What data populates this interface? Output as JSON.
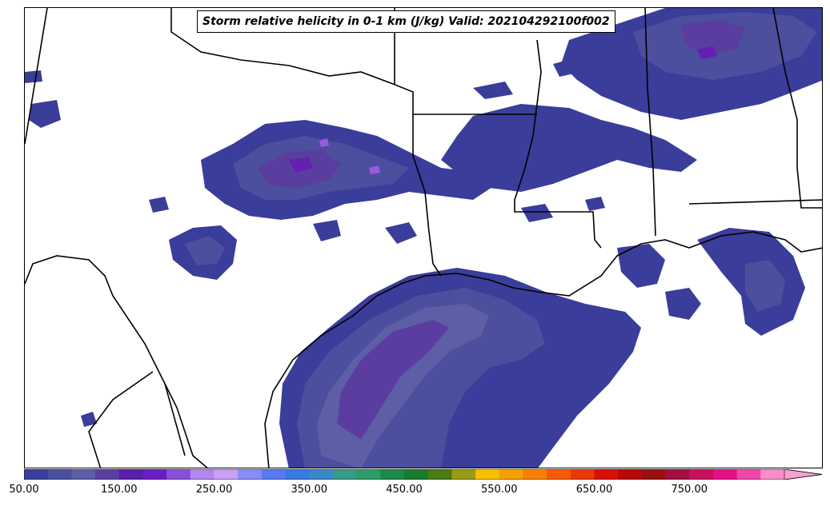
{
  "title": "Storm relative helicity in 0-1 km (J/kg) Valid: 202104292100f002",
  "colorbar": {
    "ticks": [
      "50.00",
      "150.00",
      "250.00",
      "350.00",
      "450.00",
      "550.00",
      "650.00",
      "750.00"
    ],
    "colors": [
      "#3b3f9b",
      "#4a4fa0",
      "#5b5ea6",
      "#5a3fa0",
      "#5a1fa8",
      "#6a1ec0",
      "#8a4ed8",
      "#b388ee",
      "#cba0f8",
      "#8a8cf8",
      "#5a78f0",
      "#3a7ae0",
      "#3a88c8",
      "#3a9a8a",
      "#2e9c6a",
      "#1e8a4a",
      "#1a7a2e",
      "#4a7a1a",
      "#9a9a18",
      "#f8c000",
      "#f8a000",
      "#f88000",
      "#f85a00",
      "#e83a00",
      "#d81000",
      "#b80808",
      "#981010",
      "#a01040",
      "#c81060",
      "#e81088",
      "#f048a8",
      "#f890c8"
    ],
    "extend_color": "#f8a0d0"
  },
  "fill_colors": {
    "low": "#3a3d99",
    "mid": "#4c4e9e",
    "mid2": "#5d5ea5",
    "high": "#5b3d9f",
    "peak": "#6420b0",
    "hot": "#9a5ae0"
  }
}
